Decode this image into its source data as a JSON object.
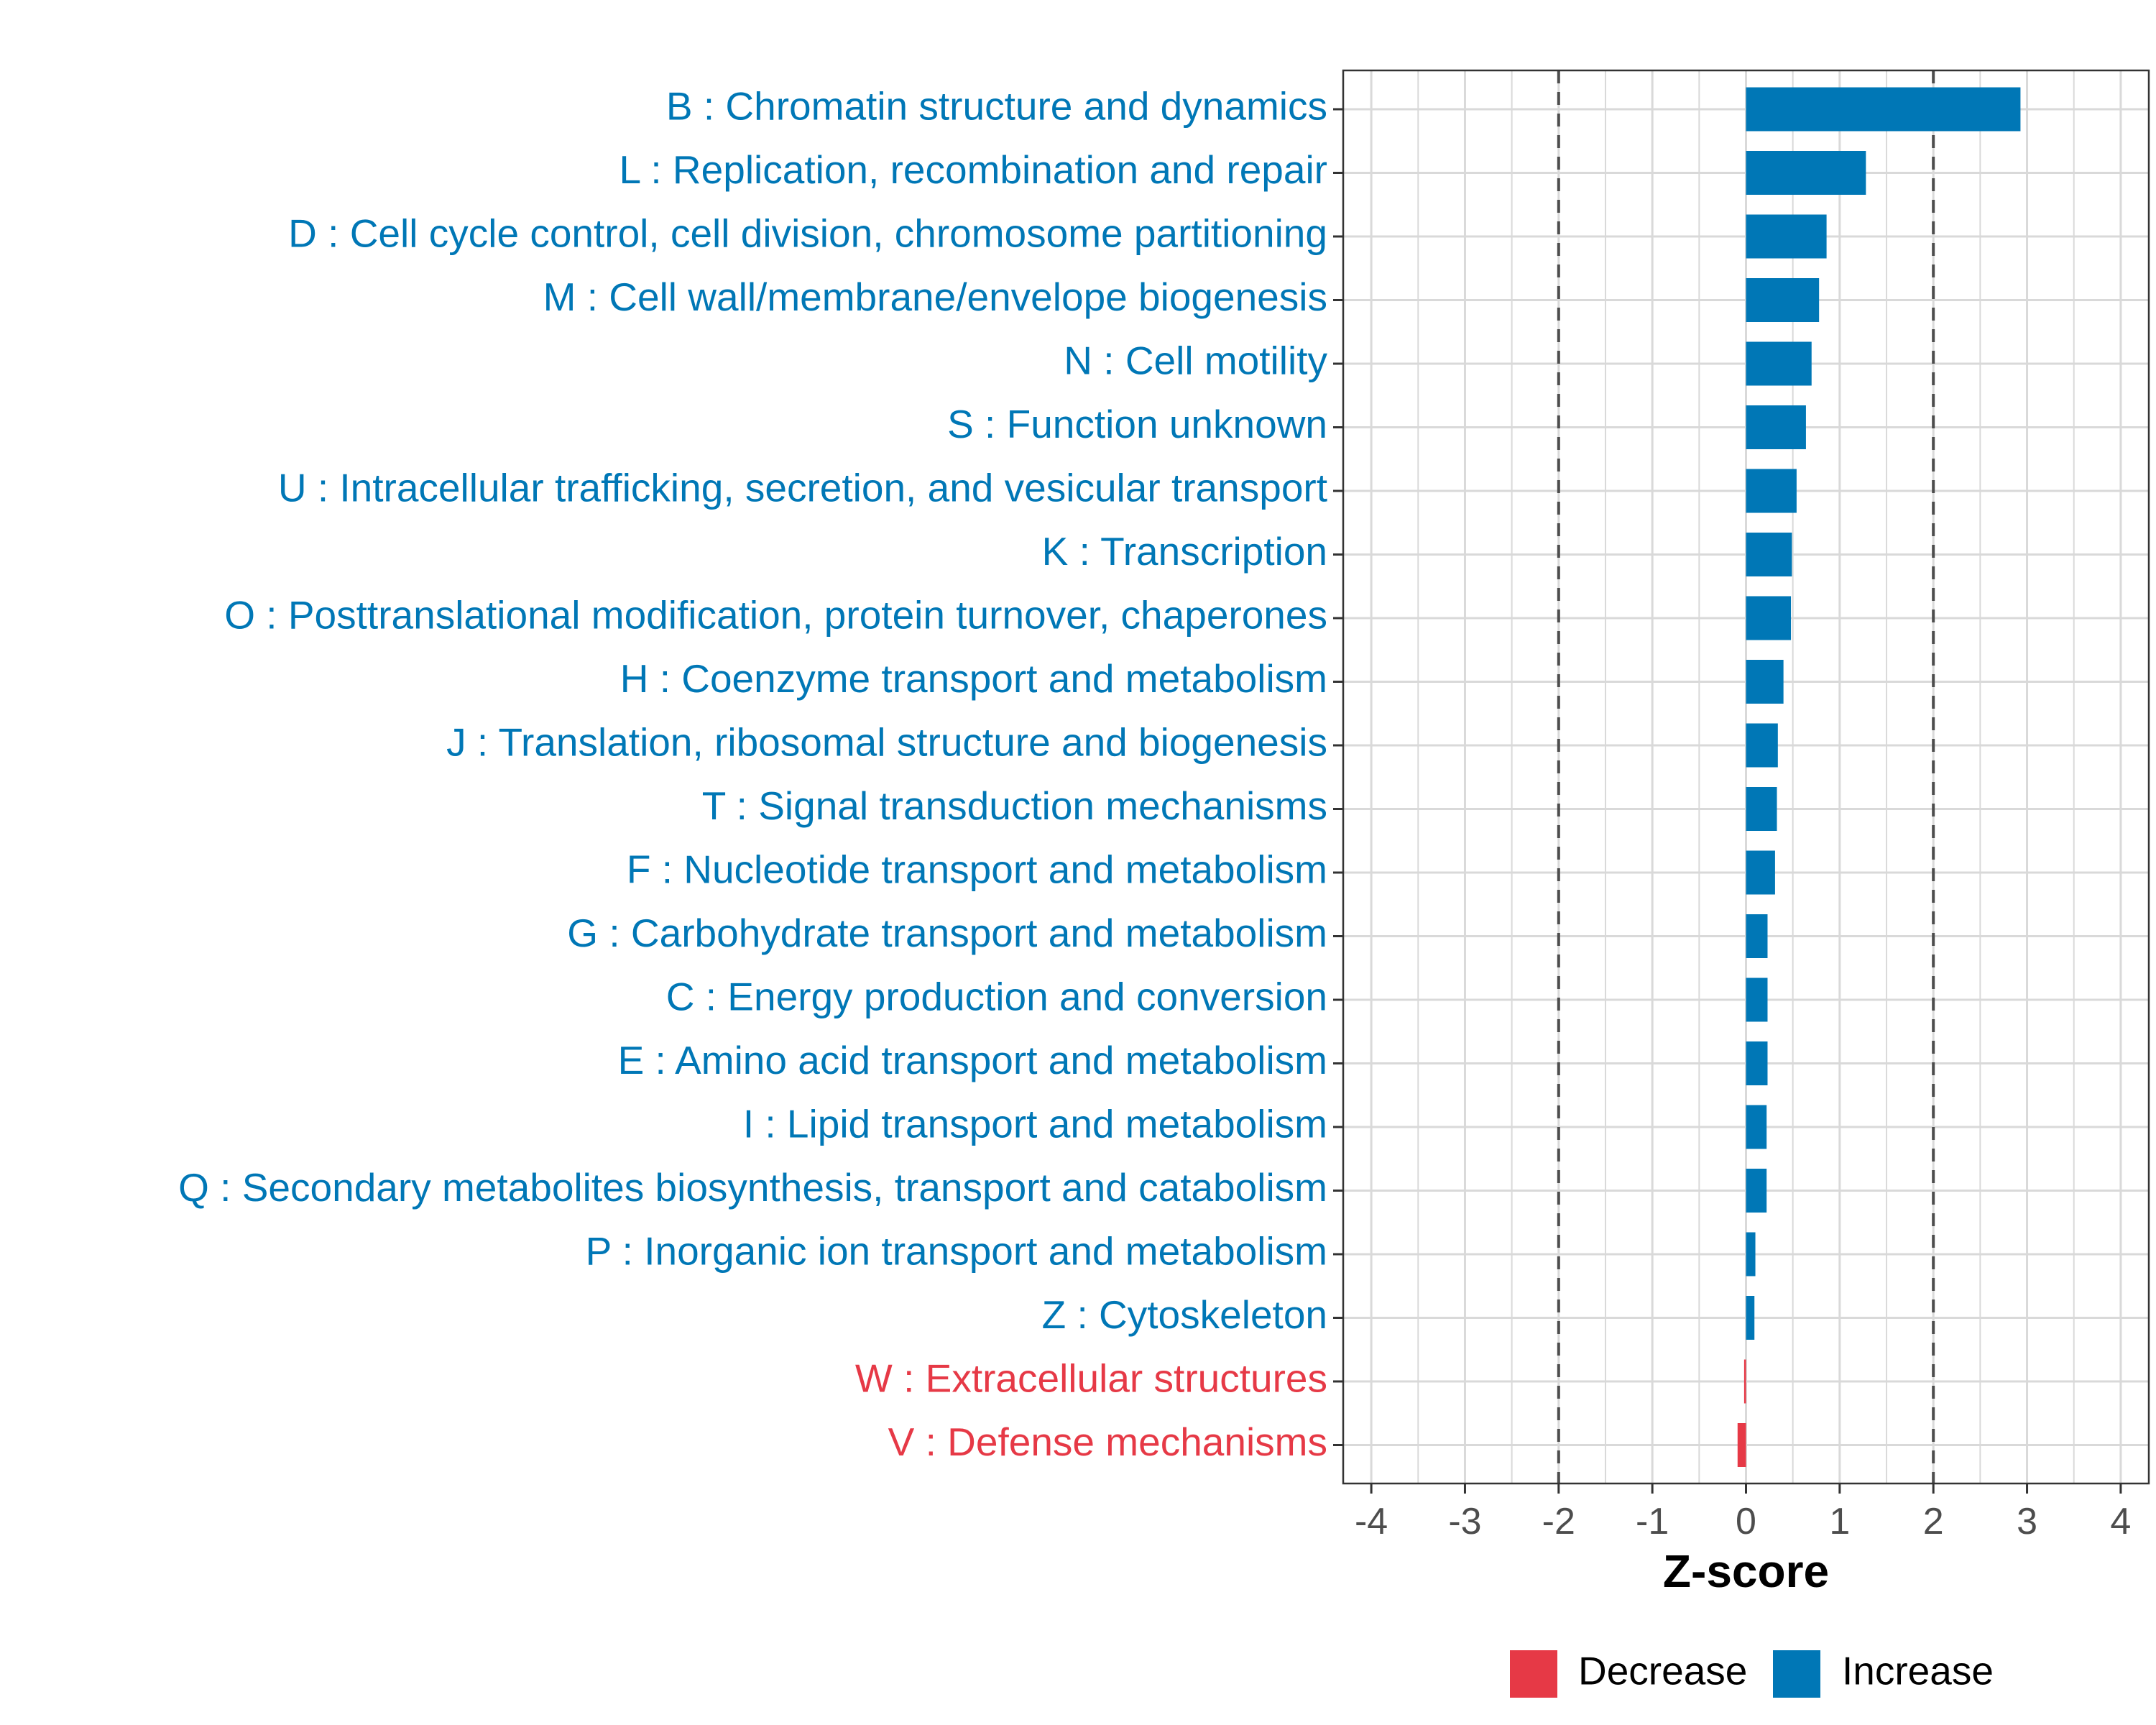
{
  "chart_data": {
    "type": "bar",
    "orientation": "horizontal",
    "xlabel": "Z-score",
    "ylabel": "",
    "xlim": [
      -4.3,
      4.3
    ],
    "xticks": [
      -4,
      -3,
      -2,
      -1,
      0,
      1,
      2,
      3,
      4
    ],
    "xtick_labels": [
      "-4",
      "-3",
      "-2",
      "-1",
      "0",
      "1",
      "2",
      "3",
      "4"
    ],
    "threshold_lines": [
      -2,
      2
    ],
    "grid": true,
    "legend_position": "bottom",
    "categories": [
      "B : Chromatin structure and dynamics",
      "L : Replication, recombination and repair",
      "D : Cell cycle control, cell division, chromosome partitioning",
      "M : Cell wall/membrane/envelope biogenesis",
      "N : Cell motility",
      "S : Function unknown",
      "U : Intracellular trafficking, secretion, and vesicular transport",
      "K : Transcription",
      "O : Posttranslational modification, protein turnover, chaperones",
      "H : Coenzyme transport and metabolism",
      "J : Translation, ribosomal structure and biogenesis",
      "T : Signal transduction mechanisms",
      "F : Nucleotide transport and metabolism",
      "G : Carbohydrate transport and metabolism",
      "C : Energy production and conversion",
      "E : Amino acid transport and metabolism",
      "I : Lipid transport and metabolism",
      "Q : Secondary metabolites biosynthesis, transport and catabolism",
      "P : Inorganic ion transport and metabolism",
      "Z : Cytoskeleton",
      "W : Extracellular structures",
      "V : Defense mechanisms"
    ],
    "values": [
      2.93,
      1.28,
      0.86,
      0.78,
      0.7,
      0.64,
      0.54,
      0.49,
      0.48,
      0.4,
      0.34,
      0.33,
      0.31,
      0.23,
      0.23,
      0.23,
      0.22,
      0.22,
      0.1,
      0.09,
      -0.02,
      -0.09
    ],
    "groups": [
      "Increase",
      "Increase",
      "Increase",
      "Increase",
      "Increase",
      "Increase",
      "Increase",
      "Increase",
      "Increase",
      "Increase",
      "Increase",
      "Increase",
      "Increase",
      "Increase",
      "Increase",
      "Increase",
      "Increase",
      "Increase",
      "Increase",
      "Increase",
      "Decrease",
      "Decrease"
    ],
    "legend": [
      {
        "name": "Decrease",
        "color": "#e63946"
      },
      {
        "name": "Increase",
        "color": "#0077b6"
      }
    ]
  },
  "colors": {
    "increase": "#0077b6",
    "decrease": "#e63946",
    "grid": "#d9d9d9",
    "panel_border": "#333333",
    "threshold": "#4d4d4d"
  }
}
